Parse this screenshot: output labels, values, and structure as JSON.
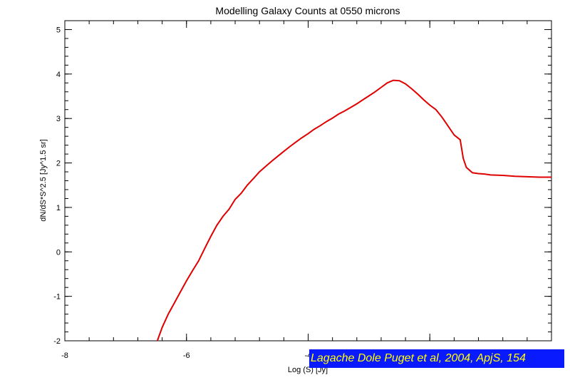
{
  "chart_data": {
    "type": "line",
    "title": "Modelling Galaxy Counts at 0550 microns",
    "xlabel": "Log (S) [Jy]",
    "ylabel": "dN/dS*S^2.5 [Jy^1.5 sr]",
    "xlim": [
      -8,
      0
    ],
    "ylim": [
      -2,
      5.2
    ],
    "xticks": [
      -8,
      -6,
      -4
    ],
    "yticks": [
      -2,
      -1,
      0,
      1,
      2,
      3,
      4,
      5
    ],
    "grid": false,
    "line_color": "#e00000",
    "series": [
      {
        "x": [
          -6.48,
          -6.4,
          -6.3,
          -6.2,
          -6.1,
          -6.0,
          -5.9,
          -5.8,
          -5.7,
          -5.6,
          -5.5,
          -5.4,
          -5.3,
          -5.2,
          -5.1,
          -5.0,
          -4.9,
          -4.8,
          -4.7,
          -4.6,
          -4.5,
          -4.4,
          -4.3,
          -4.2,
          -4.1,
          -4.0,
          -3.9,
          -3.8,
          -3.7,
          -3.6,
          -3.5,
          -3.4,
          -3.3,
          -3.2,
          -3.1,
          -3.0,
          -2.9,
          -2.8,
          -2.7,
          -2.6,
          -2.5,
          -2.4,
          -2.3,
          -2.2,
          -2.1,
          -2.0,
          -1.9,
          -1.8,
          -1.7,
          -1.6,
          -1.5,
          -1.45,
          -1.4,
          -1.3,
          -1.2,
          -1.1,
          -1.0,
          -0.8,
          -0.6,
          -0.4,
          -0.2,
          0.0
        ],
        "y": [
          -2.0,
          -1.7,
          -1.4,
          -1.15,
          -0.9,
          -0.65,
          -0.42,
          -0.2,
          0.08,
          0.35,
          0.6,
          0.8,
          0.96,
          1.18,
          1.32,
          1.5,
          1.65,
          1.8,
          1.92,
          2.04,
          2.15,
          2.26,
          2.37,
          2.47,
          2.57,
          2.66,
          2.76,
          2.84,
          2.93,
          3.01,
          3.1,
          3.17,
          3.25,
          3.33,
          3.42,
          3.51,
          3.6,
          3.7,
          3.8,
          3.86,
          3.85,
          3.78,
          3.67,
          3.55,
          3.42,
          3.3,
          3.2,
          3.03,
          2.83,
          2.63,
          2.52,
          2.1,
          1.9,
          1.78,
          1.76,
          1.75,
          1.73,
          1.72,
          1.7,
          1.69,
          1.68,
          1.68
        ]
      }
    ]
  },
  "credit": {
    "text": "Lagache Dole Puget et al, 2004, ApjS, 154",
    "bg_color": "#0a1aff",
    "text_color": "#ffff00"
  }
}
